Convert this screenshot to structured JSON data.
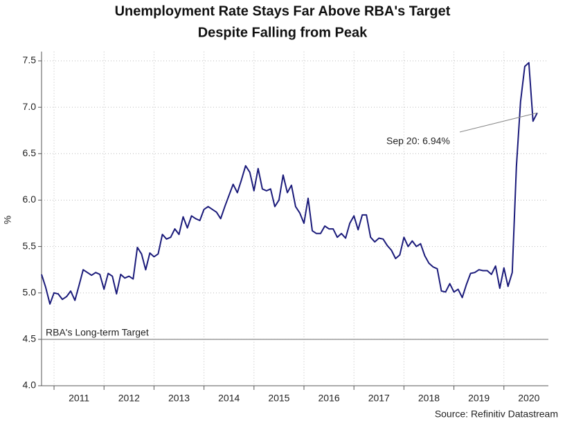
{
  "chart_data": {
    "type": "line",
    "title": [
      "Unemployment Rate Stays Far Above RBA's Target",
      "Despite Falling from Peak"
    ],
    "y_label": "%",
    "source": "Source: Refinitiv Datastream",
    "annotation": "Sep 20: 6.94%",
    "target": {
      "value": 4.5,
      "label": "RBA's Long-term Target",
      "color": "#888888"
    },
    "ylim": [
      4.0,
      7.6
    ],
    "yticks": [
      {
        "value": 4.0,
        "label": "4.0"
      },
      4.5,
      {
        "value": 5.0,
        "label": "5.0"
      },
      5.5,
      {
        "value": 6.0,
        "label": "6.0"
      },
      6.5,
      {
        "value": 7.0,
        "label": "7.0"
      },
      7.5
    ],
    "xlim": [
      2010.75,
      2020.89
    ],
    "xticks": [
      {
        "value": 2011.5,
        "label": "2011"
      },
      {
        "value": 2012.5,
        "label": "2012"
      },
      {
        "value": 2013.5,
        "label": "2013"
      },
      {
        "value": 2014.5,
        "label": "2014"
      },
      {
        "value": 2015.5,
        "label": "2015"
      },
      {
        "value": 2016.5,
        "label": "2016"
      },
      {
        "value": 2017.5,
        "label": "2017"
      },
      {
        "value": 2018.5,
        "label": "2018"
      },
      {
        "value": 2019.5,
        "label": "2019"
      },
      {
        "value": 2020.5,
        "label": "2020"
      }
    ],
    "grid": true,
    "x": [
      2010.75,
      2010.833,
      2010.917,
      2011.0,
      2011.083,
      2011.167,
      2011.25,
      2011.333,
      2011.417,
      2011.5,
      2011.583,
      2011.667,
      2011.75,
      2011.833,
      2011.917,
      2012.0,
      2012.083,
      2012.167,
      2012.25,
      2012.333,
      2012.417,
      2012.5,
      2012.583,
      2012.667,
      2012.75,
      2012.833,
      2012.917,
      2013.0,
      2013.083,
      2013.167,
      2013.25,
      2013.333,
      2013.417,
      2013.5,
      2013.583,
      2013.667,
      2013.75,
      2013.833,
      2013.917,
      2014.0,
      2014.083,
      2014.167,
      2014.25,
      2014.333,
      2014.417,
      2014.5,
      2014.583,
      2014.667,
      2014.75,
      2014.833,
      2014.917,
      2015.0,
      2015.083,
      2015.167,
      2015.25,
      2015.333,
      2015.417,
      2015.5,
      2015.583,
      2015.667,
      2015.75,
      2015.833,
      2015.917,
      2016.0,
      2016.083,
      2016.167,
      2016.25,
      2016.333,
      2016.417,
      2016.5,
      2016.583,
      2016.667,
      2016.75,
      2016.833,
      2016.917,
      2017.0,
      2017.083,
      2017.167,
      2017.25,
      2017.333,
      2017.417,
      2017.5,
      2017.583,
      2017.667,
      2017.75,
      2017.833,
      2017.917,
      2018.0,
      2018.083,
      2018.167,
      2018.25,
      2018.333,
      2018.417,
      2018.5,
      2018.583,
      2018.667,
      2018.75,
      2018.833,
      2018.917,
      2019.0,
      2019.083,
      2019.167,
      2019.25,
      2019.333,
      2019.417,
      2019.5,
      2019.583,
      2019.667,
      2019.75,
      2019.833,
      2019.917,
      2020.0,
      2020.083,
      2020.167,
      2020.25,
      2020.333,
      2020.417,
      2020.5,
      2020.583,
      2020.667
    ],
    "series": [
      {
        "name": "Unemployment rate",
        "color": "#1a1a7a",
        "values": [
          5.2,
          5.06,
          4.88,
          5.0,
          4.99,
          4.93,
          4.96,
          5.02,
          4.92,
          5.08,
          5.25,
          5.22,
          5.19,
          5.22,
          5.2,
          5.04,
          5.21,
          5.18,
          4.99,
          5.2,
          5.16,
          5.18,
          5.15,
          5.49,
          5.42,
          5.25,
          5.43,
          5.39,
          5.42,
          5.63,
          5.58,
          5.6,
          5.69,
          5.63,
          5.82,
          5.7,
          5.83,
          5.8,
          5.78,
          5.9,
          5.93,
          5.9,
          5.87,
          5.8,
          5.93,
          6.05,
          6.17,
          6.08,
          6.22,
          6.37,
          6.3,
          6.1,
          6.34,
          6.12,
          6.1,
          6.12,
          5.93,
          6.0,
          6.27,
          6.08,
          6.16,
          5.93,
          5.86,
          5.75,
          6.02,
          5.67,
          5.64,
          5.64,
          5.72,
          5.69,
          5.69,
          5.6,
          5.64,
          5.59,
          5.75,
          5.83,
          5.68,
          5.84,
          5.84,
          5.6,
          5.55,
          5.59,
          5.58,
          5.51,
          5.46,
          5.37,
          5.41,
          5.6,
          5.5,
          5.56,
          5.5,
          5.53,
          5.4,
          5.32,
          5.28,
          5.26,
          5.02,
          5.01,
          5.1,
          5.01,
          5.04,
          4.95,
          5.09,
          5.21,
          5.22,
          5.25,
          5.24,
          5.24,
          5.2,
          5.29,
          5.05,
          5.27,
          5.07,
          5.22,
          6.36,
          7.06,
          7.44,
          7.48,
          6.85,
          6.94
        ]
      }
    ]
  }
}
